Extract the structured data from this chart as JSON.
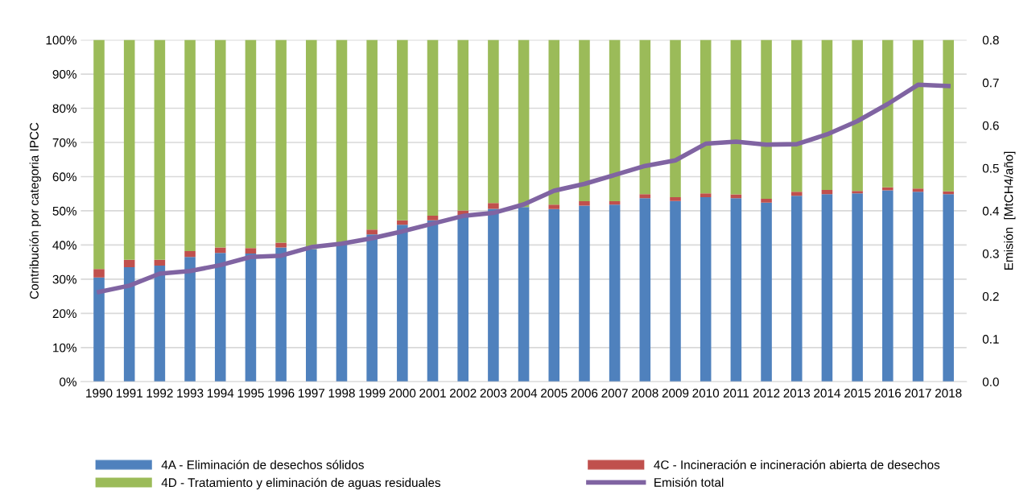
{
  "chart_data": {
    "type": "bar",
    "stacked": true,
    "ylabel": "Contribución por categoria IPCC",
    "y2label": "Emisión  [MtCH4/año]",
    "categories": [
      "1990",
      "1991",
      "1992",
      "1993",
      "1994",
      "1995",
      "1996",
      "1997",
      "1998",
      "1999",
      "2000",
      "2001",
      "2002",
      "2003",
      "2004",
      "2005",
      "2006",
      "2007",
      "2008",
      "2009",
      "2010",
      "2011",
      "2012",
      "2013",
      "2014",
      "2015",
      "2016",
      "2017",
      "2018"
    ],
    "series": [
      {
        "name": "4A - Eliminación de desechos sólidos",
        "color": "#4f81bd",
        "values": [
          30.5,
          33.5,
          34.0,
          36.5,
          37.7,
          37.5,
          39.3,
          38.8,
          40.6,
          43.1,
          45.9,
          47.2,
          48.8,
          50.6,
          51.1,
          50.5,
          51.5,
          51.8,
          53.7,
          52.9,
          54.0,
          53.7,
          52.4,
          54.4,
          54.9,
          55.1,
          56.0,
          55.6,
          54.9
        ]
      },
      {
        "name": "4C - Incineración e incineración abierta de desechos",
        "color": "#c0504d",
        "values": [
          2.5,
          2.2,
          1.7,
          1.7,
          1.6,
          1.6,
          1.4,
          null,
          null,
          1.4,
          1.3,
          1.4,
          1.3,
          1.7,
          null,
          1.3,
          1.3,
          1.0,
          1.2,
          1.1,
          1.1,
          1.1,
          1.1,
          1.2,
          1.2,
          0.7,
          0.9,
          0.9,
          0.8
        ]
      },
      {
        "name": "4D - Tratamiento y eliminación de aguas residuales",
        "color": "#9bbb59",
        "values": [
          67.0,
          64.3,
          64.3,
          61.8,
          60.7,
          60.9,
          59.3,
          61.2,
          59.4,
          55.5,
          52.8,
          51.4,
          49.9,
          47.7,
          48.9,
          48.2,
          47.2,
          47.2,
          45.1,
          46.0,
          44.9,
          45.2,
          46.5,
          44.4,
          43.9,
          44.2,
          43.1,
          43.5,
          44.3
        ]
      },
      {
        "name": "Emisión total",
        "type": "line",
        "axis": "y2",
        "color": "#8064a2",
        "values": [
          0.21,
          0.225,
          0.253,
          0.259,
          0.273,
          0.292,
          0.295,
          0.315,
          0.323,
          0.336,
          0.352,
          0.37,
          0.388,
          0.395,
          0.415,
          0.447,
          0.463,
          0.484,
          0.505,
          0.518,
          0.557,
          0.562,
          0.555,
          0.556,
          0.579,
          0.61,
          0.65,
          0.695,
          0.692
        ]
      }
    ],
    "ylim": [
      0,
      100
    ],
    "yticks": [
      {
        "value": 0,
        "label": "0%"
      },
      {
        "value": 10,
        "label": "10%"
      },
      {
        "value": 20,
        "label": "20%"
      },
      {
        "value": 30,
        "label": "30%"
      },
      {
        "value": 40,
        "label": "40%"
      },
      {
        "value": 50,
        "label": "50%"
      },
      {
        "value": 60,
        "label": "60%"
      },
      {
        "value": 70,
        "label": "70%"
      },
      {
        "value": 80,
        "label": "80%"
      },
      {
        "value": 90,
        "label": "90%"
      },
      {
        "value": 100,
        "label": "100%"
      }
    ],
    "y2lim": [
      0,
      0.8
    ],
    "y2ticks": [
      {
        "value": 0,
        "label": "0.0"
      },
      0.1,
      0.2,
      0.3,
      0.4,
      0.5,
      0.6,
      0.7,
      0.8
    ],
    "grid": "y",
    "legend": "bottom",
    "line_style": "solid",
    "marker": "none"
  }
}
